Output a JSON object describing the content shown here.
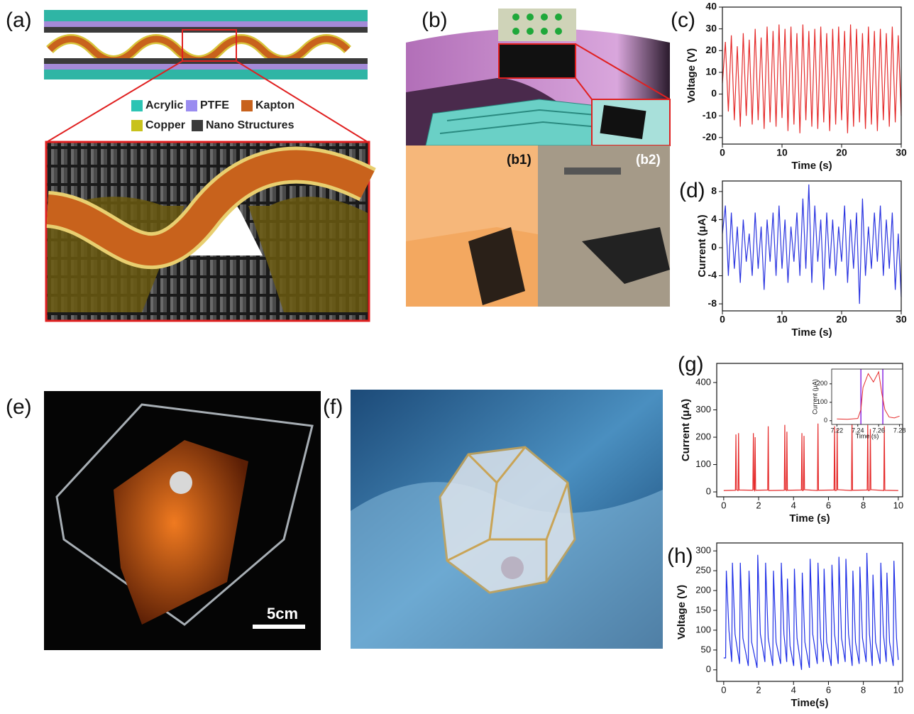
{
  "figure": {
    "panel_labels": [
      "(a)",
      "(b)",
      "(c)",
      "(d)",
      "(e)",
      "(f)",
      "(g)",
      "(h)"
    ],
    "legend": [
      {
        "label": "Acrylic",
        "color": "#2cc4b4"
      },
      {
        "label": "PTFE",
        "color": "#9a8cf0"
      },
      {
        "label": "Kapton",
        "color": "#c8621c"
      },
      {
        "label": "Copper",
        "color": "#c8c21c"
      },
      {
        "label": "Nano Structures",
        "color": "#3a3a3a"
      }
    ],
    "photo_labels": [
      "(b1)",
      "(b2)"
    ],
    "scale_bar": "5cm"
  },
  "chart_data": [
    {
      "type": "line",
      "xlabel": "Time (s)",
      "ylabel": "Voltage (V)",
      "color": "#e52b2b",
      "x": [
        0,
        0.5,
        1,
        1.5,
        2,
        2.5,
        3,
        3.5,
        4,
        4.5,
        5,
        5.5,
        6,
        6.5,
        7,
        7.5,
        8,
        8.5,
        9,
        9.5,
        10,
        10.5,
        11,
        11.5,
        12,
        12.5,
        13,
        13.5,
        14,
        14.5,
        15,
        15.5,
        16,
        16.5,
        17,
        17.5,
        18,
        18.5,
        19,
        19.5,
        20,
        20.5,
        21,
        21.5,
        22,
        22.5,
        23,
        23.5,
        24,
        24.5,
        25,
        25.5,
        26,
        26.5,
        27,
        27.5,
        28,
        28.5,
        29,
        29.5,
        30
      ],
      "values": [
        5,
        24,
        -8,
        27,
        -12,
        22,
        -15,
        28,
        -10,
        25,
        -14,
        30,
        -12,
        26,
        -16,
        31,
        -13,
        29,
        -15,
        32,
        -11,
        30,
        -17,
        31,
        -14,
        28,
        -18,
        32,
        -12,
        29,
        -15,
        30,
        -16,
        31,
        -13,
        28,
        -17,
        30,
        -14,
        31,
        -12,
        29,
        -18,
        32,
        -15,
        30,
        -13,
        28,
        -16,
        31,
        -14,
        29,
        -17,
        30,
        -12,
        28,
        -15,
        31,
        -13,
        27,
        -10
      ],
      "xlim": [
        0,
        30
      ],
      "ylim": [
        -23,
        40
      ],
      "xticks": [
        0,
        10,
        20,
        30
      ],
      "yticks": [
        -20,
        -10,
        0,
        10,
        20,
        30,
        40
      ]
    },
    {
      "type": "line",
      "xlabel": "Time (s)",
      "ylabel": "Current (μA)",
      "color": "#2b35e0",
      "x": [
        0,
        0.5,
        1,
        1.5,
        2,
        2.5,
        3,
        3.5,
        4,
        4.5,
        5,
        5.5,
        6,
        6.5,
        7,
        7.5,
        8,
        8.5,
        9,
        9.5,
        10,
        10.5,
        11,
        11.5,
        12,
        12.5,
        13,
        13.5,
        14,
        14.5,
        15,
        15.5,
        16,
        16.5,
        17,
        17.5,
        18,
        18.5,
        19,
        19.5,
        20,
        20.5,
        21,
        21.5,
        22,
        22.5,
        23,
        23.5,
        24,
        24.5,
        25,
        25.5,
        26,
        26.5,
        27,
        27.5,
        28,
        28.5,
        29,
        29.5,
        30
      ],
      "values": [
        2,
        6,
        -4,
        5,
        -3,
        3,
        -5,
        4,
        -2,
        2,
        -4,
        5,
        -3,
        3,
        -6,
        4,
        -2,
        5,
        -4,
        6,
        -3,
        4,
        -5,
        3,
        -2,
        5,
        -4,
        7,
        -3,
        9,
        -5,
        6,
        -2,
        4,
        -6,
        5,
        -3,
        4,
        -4,
        3,
        -2,
        6,
        -5,
        4,
        -3,
        5,
        -8,
        7,
        -4,
        3,
        -3,
        5,
        -2,
        6,
        -4,
        4,
        -3,
        5,
        -6,
        2,
        -7
      ],
      "xlim": [
        0,
        30
      ],
      "ylim": [
        -9,
        9.5
      ],
      "xticks": [
        0,
        10,
        20,
        30
      ],
      "yticks": [
        -8,
        -4,
        0,
        4,
        8
      ]
    },
    {
      "type": "line",
      "xlabel": "Time (s)",
      "ylabel": "Current (μA)",
      "color": "#e52b2b",
      "x": [
        0,
        0.67,
        0.7,
        0.73,
        0.82,
        0.85,
        0.88,
        1.67,
        1.7,
        1.73,
        1.77,
        1.8,
        1.83,
        2.52,
        2.55,
        2.58,
        3.47,
        3.5,
        3.53,
        3.59,
        3.62,
        3.65,
        4.45,
        4.48,
        4.51,
        4.57,
        4.6,
        4.63,
        5.37,
        5.4,
        5.43,
        6.32,
        6.35,
        6.38,
        6.47,
        6.5,
        6.53,
        7.32,
        7.35,
        7.38,
        8.22,
        8.25,
        8.28,
        8.37,
        8.4,
        8.43,
        9.17,
        9.2,
        9.23,
        10
      ],
      "values": [
        5,
        6,
        210,
        8,
        5,
        215,
        7,
        6,
        215,
        9,
        5,
        200,
        6,
        7,
        240,
        5,
        6,
        245,
        8,
        5,
        220,
        6,
        7,
        215,
        5,
        6,
        205,
        8,
        5,
        250,
        6,
        7,
        240,
        5,
        6,
        230,
        8,
        5,
        250,
        6,
        7,
        245,
        5,
        6,
        230,
        8,
        5,
        240,
        6,
        5
      ],
      "xlim": [
        -0.4,
        10.25
      ],
      "ylim": [
        -18,
        470
      ],
      "xticks": [
        0,
        2,
        4,
        6,
        8,
        10
      ],
      "yticks": [
        0,
        100,
        200,
        300,
        400
      ]
    },
    {
      "type": "line",
      "xlabel": "Time (s)",
      "ylabel": "Current (μA)",
      "color": "#e52b2b",
      "vlines": [
        7.243,
        7.264
      ],
      "vline_color": "#8a2be2",
      "x": [
        7.22,
        7.23,
        7.24,
        7.243,
        7.245,
        7.25,
        7.255,
        7.26,
        7.263,
        7.266,
        7.27,
        7.275,
        7.28
      ],
      "values": [
        10,
        8,
        12,
        60,
        180,
        255,
        210,
        265,
        150,
        60,
        20,
        15,
        25
      ],
      "xlim": [
        7.215,
        7.283
      ],
      "ylim": [
        -20,
        280
      ],
      "xticks": [
        7.22,
        7.24,
        7.26,
        7.28
      ],
      "yticks": [
        0,
        100,
        200
      ]
    },
    {
      "type": "line",
      "xlabel": "Time(s)",
      "ylabel": "Voltage (V)",
      "color": "#1f2fe6",
      "x": [
        0,
        0.11,
        0.15,
        0.3,
        0.46,
        0.5,
        0.65,
        0.91,
        0.95,
        1.1,
        1.41,
        1.45,
        1.6,
        1.91,
        1.95,
        2.1,
        2.36,
        2.4,
        2.55,
        2.81,
        2.85,
        3,
        3.26,
        3.3,
        3.45,
        3.61,
        3.65,
        3.8,
        4.01,
        4.05,
        4.2,
        4.46,
        4.5,
        4.65,
        4.91,
        4.95,
        5.1,
        5.36,
        5.4,
        5.55,
        5.71,
        5.75,
        5.9,
        6.16,
        6.2,
        6.35,
        6.56,
        6.6,
        6.75,
        6.96,
        7,
        7.15,
        7.36,
        7.4,
        7.55,
        7.76,
        7.8,
        7.95,
        8.16,
        8.2,
        8.35,
        8.51,
        8.55,
        8.7,
        8.96,
        9,
        9.15,
        9.31,
        9.35,
        9.5,
        9.71,
        9.75,
        9.9,
        10
      ],
      "values": [
        30,
        30,
        250,
        100,
        20,
        270,
        90,
        15,
        270,
        80,
        10,
        250,
        70,
        5,
        290,
        90,
        20,
        270,
        80,
        10,
        250,
        70,
        15,
        270,
        90,
        20,
        230,
        60,
        10,
        255,
        80,
        0,
        245,
        70,
        5,
        280,
        90,
        15,
        270,
        80,
        20,
        255,
        70,
        10,
        265,
        90,
        15,
        285,
        80,
        20,
        280,
        90,
        10,
        250,
        70,
        15,
        260,
        80,
        20,
        295,
        90,
        10,
        240,
        70,
        15,
        270,
        90,
        20,
        245,
        70,
        10,
        275,
        80,
        25
      ],
      "xlim": [
        -0.4,
        10.25
      ],
      "ylim": [
        -29,
        320
      ],
      "xticks": [
        0,
        2,
        4,
        6,
        8,
        10
      ],
      "yticks": [
        0,
        50,
        100,
        150,
        200,
        250,
        300
      ]
    }
  ]
}
